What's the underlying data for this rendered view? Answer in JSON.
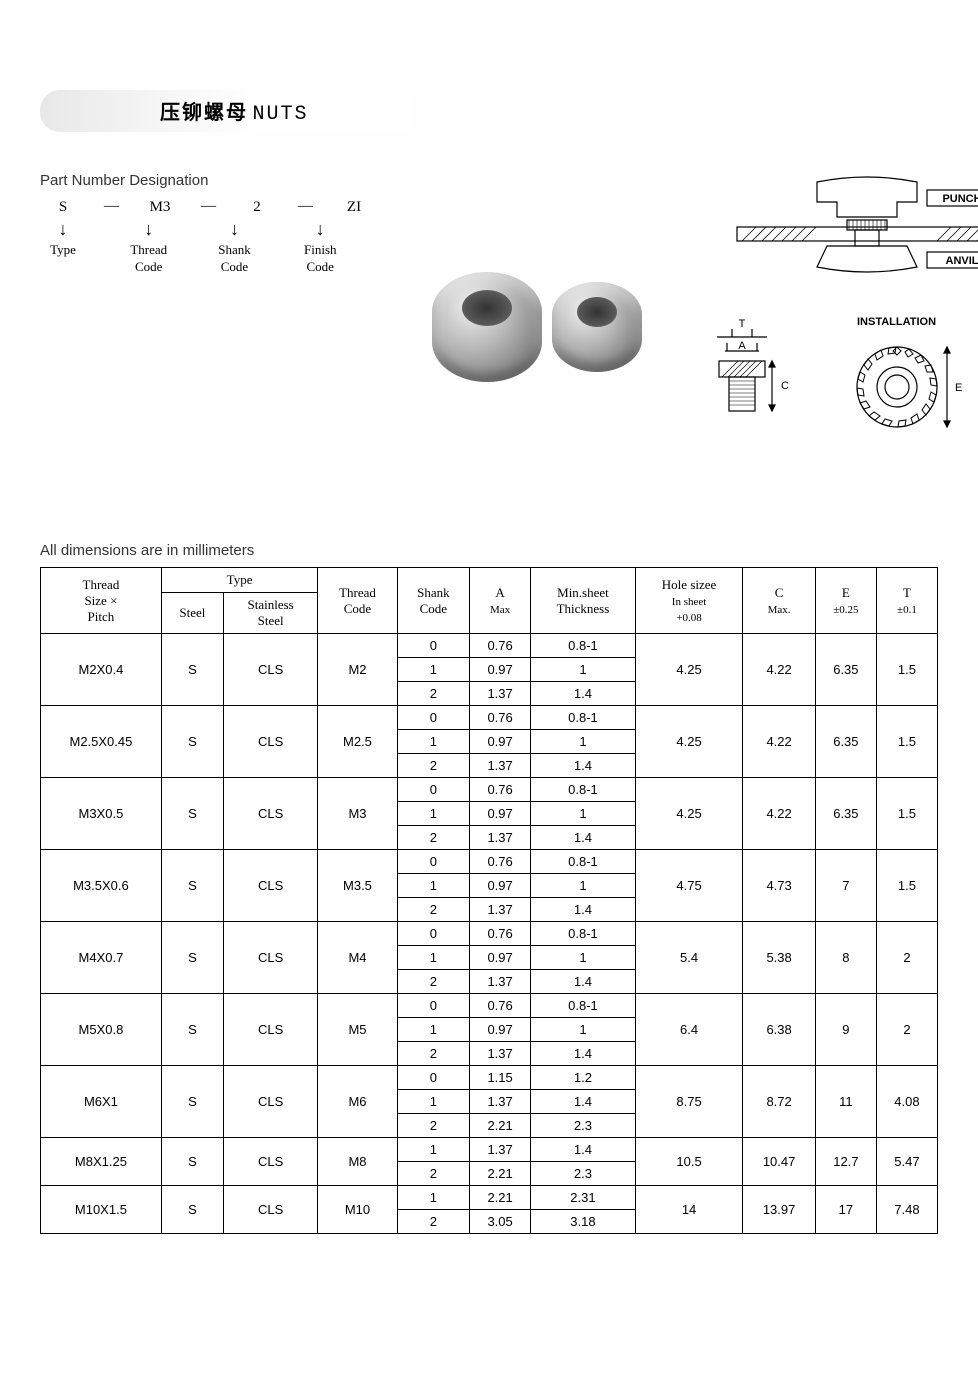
{
  "title": {
    "cn": "压铆螺母",
    "en": "NUTS"
  },
  "part_number": {
    "heading": "Part Number Designation",
    "segments": [
      {
        "value": "S",
        "label_top": "Type"
      },
      {
        "value": "M3",
        "label_top": "Thread",
        "label_bot": "Code"
      },
      {
        "value": "2",
        "label_top": "Shank",
        "label_bot": "Code"
      },
      {
        "value": "ZI",
        "label_top": "Finish",
        "label_bot": "Code"
      }
    ]
  },
  "diagram_labels": {
    "punch": "PUNCH",
    "anvil": "ANVIL",
    "installation": "INSTALLATION",
    "T": "T",
    "A": "A",
    "C": "C",
    "E": "E"
  },
  "units_note": "All dimensions are in millimeters",
  "table": {
    "headers": {
      "thread_size": "Thread",
      "thread_size2": "Size ×",
      "thread_size3": "Pitch",
      "type": "Type",
      "steel": "Steel",
      "ss": "Stainless",
      "ss2": "Steel",
      "thread_code": "Thread",
      "thread_code2": "Code",
      "shank_code": "Shank",
      "shank_code2": "Code",
      "A": "A",
      "A2": "Max",
      "min_sheet": "Min.sheet",
      "min_sheet2": "Thickness",
      "hole": "Hole sizee",
      "hole2": "In sheet",
      "hole3": "+0.08",
      "C": "C",
      "C2": "Max.",
      "E": "E",
      "E2": "±0.25",
      "T": "T",
      "T2": "±0.1"
    },
    "groups": [
      {
        "size": "M2X0.4",
        "steel": "S",
        "ss": "CLS",
        "tcode": "M2",
        "hole": "4.25",
        "C": "4.22",
        "E": "6.35",
        "T": "1.5",
        "rows": [
          [
            "0",
            "0.76",
            "0.8-1"
          ],
          [
            "1",
            "0.97",
            "1"
          ],
          [
            "2",
            "1.37",
            "1.4"
          ]
        ]
      },
      {
        "size": "M2.5X0.45",
        "steel": "S",
        "ss": "CLS",
        "tcode": "M2.5",
        "hole": "4.25",
        "C": "4.22",
        "E": "6.35",
        "T": "1.5",
        "rows": [
          [
            "0",
            "0.76",
            "0.8-1"
          ],
          [
            "1",
            "0.97",
            "1"
          ],
          [
            "2",
            "1.37",
            "1.4"
          ]
        ]
      },
      {
        "size": "M3X0.5",
        "steel": "S",
        "ss": "CLS",
        "tcode": "M3",
        "hole": "4.25",
        "C": "4.22",
        "E": "6.35",
        "T": "1.5",
        "rows": [
          [
            "0",
            "0.76",
            "0.8-1"
          ],
          [
            "1",
            "0.97",
            "1"
          ],
          [
            "2",
            "1.37",
            "1.4"
          ]
        ]
      },
      {
        "size": "M3.5X0.6",
        "steel": "S",
        "ss": "CLS",
        "tcode": "M3.5",
        "hole": "4.75",
        "C": "4.73",
        "E": "7",
        "T": "1.5",
        "rows": [
          [
            "0",
            "0.76",
            "0.8-1"
          ],
          [
            "1",
            "0.97",
            "1"
          ],
          [
            "2",
            "1.37",
            "1.4"
          ]
        ]
      },
      {
        "size": "M4X0.7",
        "steel": "S",
        "ss": "CLS",
        "tcode": "M4",
        "hole": "5.4",
        "C": "5.38",
        "E": "8",
        "T": "2",
        "rows": [
          [
            "0",
            "0.76",
            "0.8-1"
          ],
          [
            "1",
            "0.97",
            "1"
          ],
          [
            "2",
            "1.37",
            "1.4"
          ]
        ]
      },
      {
        "size": "M5X0.8",
        "steel": "S",
        "ss": "CLS",
        "tcode": "M5",
        "hole": "6.4",
        "C": "6.38",
        "E": "9",
        "T": "2",
        "rows": [
          [
            "0",
            "0.76",
            "0.8-1"
          ],
          [
            "1",
            "0.97",
            "1"
          ],
          [
            "2",
            "1.37",
            "1.4"
          ]
        ]
      },
      {
        "size": "M6X1",
        "steel": "S",
        "ss": "CLS",
        "tcode": "M6",
        "hole": "8.75",
        "C": "8.72",
        "E": "11",
        "T": "4.08",
        "rows": [
          [
            "0",
            "1.15",
            "1.2"
          ],
          [
            "1",
            "1.37",
            "1.4"
          ],
          [
            "2",
            "2.21",
            "2.3"
          ]
        ]
      },
      {
        "size": "M8X1.25",
        "steel": "S",
        "ss": "CLS",
        "tcode": "M8",
        "hole": "10.5",
        "C": "10.47",
        "E": "12.7",
        "T": "5.47",
        "rows": [
          [
            "1",
            "1.37",
            "1.4"
          ],
          [
            "2",
            "2.21",
            "2.3"
          ]
        ]
      },
      {
        "size": "M10X1.5",
        "steel": "S",
        "ss": "CLS",
        "tcode": "M10",
        "hole": "14",
        "C": "13.97",
        "E": "17",
        "T": "7.48",
        "rows": [
          [
            "1",
            "2.21",
            "2.31"
          ],
          [
            "2",
            "3.05",
            "3.18"
          ]
        ]
      }
    ]
  }
}
